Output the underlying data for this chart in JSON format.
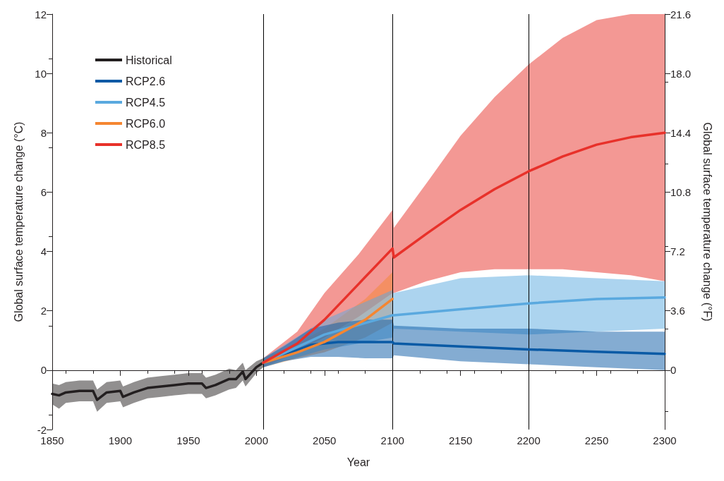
{
  "chart_data": {
    "type": "line",
    "xlabel": "Year",
    "ylabel": "Global surface temperature change (°C)",
    "y2label": "Global surface temperature change (°F)",
    "xlim": [
      1850,
      2300
    ],
    "xticks": [
      1850,
      1900,
      1950,
      2000,
      2050,
      2100,
      2150,
      2200,
      2250,
      2300
    ],
    "ylim": [
      -2,
      12
    ],
    "yticks": [
      -2,
      0,
      2,
      4,
      6,
      8,
      10,
      12
    ],
    "y2lim": [
      -3.6,
      21.6
    ],
    "y2ticks": [
      0,
      3.6,
      7.2,
      10.8,
      14.4,
      {
        "value": 18,
        "label": "18.0"
      },
      21.6
    ],
    "grid": false,
    "legend": "top left",
    "marker": "none",
    "line_style": "solid",
    "ref_lines": [
      {
        "axis": "x",
        "value": 2005,
        "color": "#000000"
      },
      {
        "axis": "x",
        "value": 2100,
        "color": "#000000"
      },
      {
        "axis": "x",
        "value": 2200,
        "color": "#000000"
      }
    ],
    "series": [
      {
        "name": "Historical",
        "color": "#231f20",
        "x": [
          1850,
          1855,
          1860,
          1870,
          1880,
          1883,
          1890,
          1900,
          1902,
          1910,
          1920,
          1930,
          1940,
          1950,
          1960,
          1963,
          1970,
          1980,
          1985,
          1990,
          1992,
          2000,
          2005
        ],
        "values": [
          -0.8,
          -0.85,
          -0.75,
          -0.7,
          -0.7,
          -1.0,
          -0.75,
          -0.7,
          -0.9,
          -0.75,
          -0.6,
          -0.55,
          -0.5,
          -0.45,
          -0.45,
          -0.6,
          -0.5,
          -0.3,
          -0.3,
          -0.05,
          -0.3,
          0.1,
          0.25
        ],
        "lower": [
          -1.15,
          -1.3,
          -1.1,
          -1.05,
          -1.05,
          -1.4,
          -1.1,
          -1.05,
          -1.25,
          -1.1,
          -0.95,
          -0.9,
          -0.85,
          -0.8,
          -0.8,
          -0.95,
          -0.85,
          -0.65,
          -0.6,
          -0.35,
          -0.55,
          -0.1,
          0.1
        ],
        "upper": [
          -0.45,
          -0.5,
          -0.4,
          -0.35,
          -0.35,
          -0.65,
          -0.4,
          -0.35,
          -0.55,
          -0.4,
          -0.25,
          -0.2,
          -0.15,
          -0.1,
          -0.1,
          -0.25,
          -0.15,
          0.05,
          0.0,
          0.25,
          0.0,
          0.3,
          0.4
        ]
      },
      {
        "name": "RCP2.6",
        "color": "#0a5aa5",
        "x": [
          2005,
          2020,
          2040,
          2060,
          2080,
          2100,
          2101,
          2150,
          2200,
          2250,
          2300
        ],
        "values": [
          0.25,
          0.5,
          0.85,
          0.95,
          0.95,
          0.95,
          0.9,
          0.8,
          0.7,
          0.62,
          0.55
        ],
        "lower": [
          0.1,
          0.3,
          0.45,
          0.45,
          0.4,
          0.4,
          0.5,
          0.3,
          0.2,
          0.1,
          0.0
        ],
        "upper": [
          0.4,
          0.8,
          1.4,
          1.6,
          1.7,
          1.7,
          1.5,
          1.4,
          1.4,
          1.3,
          1.3
        ]
      },
      {
        "name": "RCP4.5",
        "color": "#5aa9df",
        "x": [
          2005,
          2050,
          2100,
          2101,
          2150,
          2200,
          2250,
          2300
        ],
        "values": [
          0.25,
          1.2,
          1.85,
          1.85,
          2.05,
          2.25,
          2.4,
          2.45
        ],
        "lower": [
          0.1,
          0.7,
          1.1,
          1.4,
          1.3,
          1.2,
          1.3,
          1.4
        ],
        "upper": [
          0.4,
          1.7,
          2.7,
          2.6,
          3.1,
          3.2,
          3.1,
          3.0
        ]
      },
      {
        "name": "RCP6.0",
        "color": "#f58631",
        "x": [
          2005,
          2030,
          2050,
          2080,
          2100
        ],
        "values": [
          0.25,
          0.6,
          0.95,
          1.7,
          2.4
        ],
        "lower": [
          0.1,
          0.4,
          0.6,
          1.1,
          1.6
        ],
        "upper": [
          0.4,
          0.9,
          1.4,
          2.4,
          3.3
        ]
      },
      {
        "name": "RCP8.5",
        "color": "#e8312a",
        "x": [
          2005,
          2030,
          2050,
          2075,
          2100,
          2101,
          2125,
          2150,
          2175,
          2200,
          2225,
          2250,
          2275,
          2300
        ],
        "values": [
          0.25,
          0.9,
          1.7,
          2.9,
          4.1,
          3.8,
          4.6,
          5.4,
          6.1,
          6.7,
          7.2,
          7.6,
          7.85,
          8.0
        ],
        "lower": [
          0.1,
          0.6,
          1.1,
          1.8,
          2.6,
          2.6,
          3.0,
          3.3,
          3.4,
          3.4,
          3.4,
          3.3,
          3.2,
          3.0
        ],
        "upper": [
          0.4,
          1.3,
          2.6,
          3.9,
          5.4,
          4.8,
          6.3,
          7.9,
          9.2,
          10.3,
          11.2,
          11.8,
          12.0,
          12.0
        ]
      }
    ]
  }
}
